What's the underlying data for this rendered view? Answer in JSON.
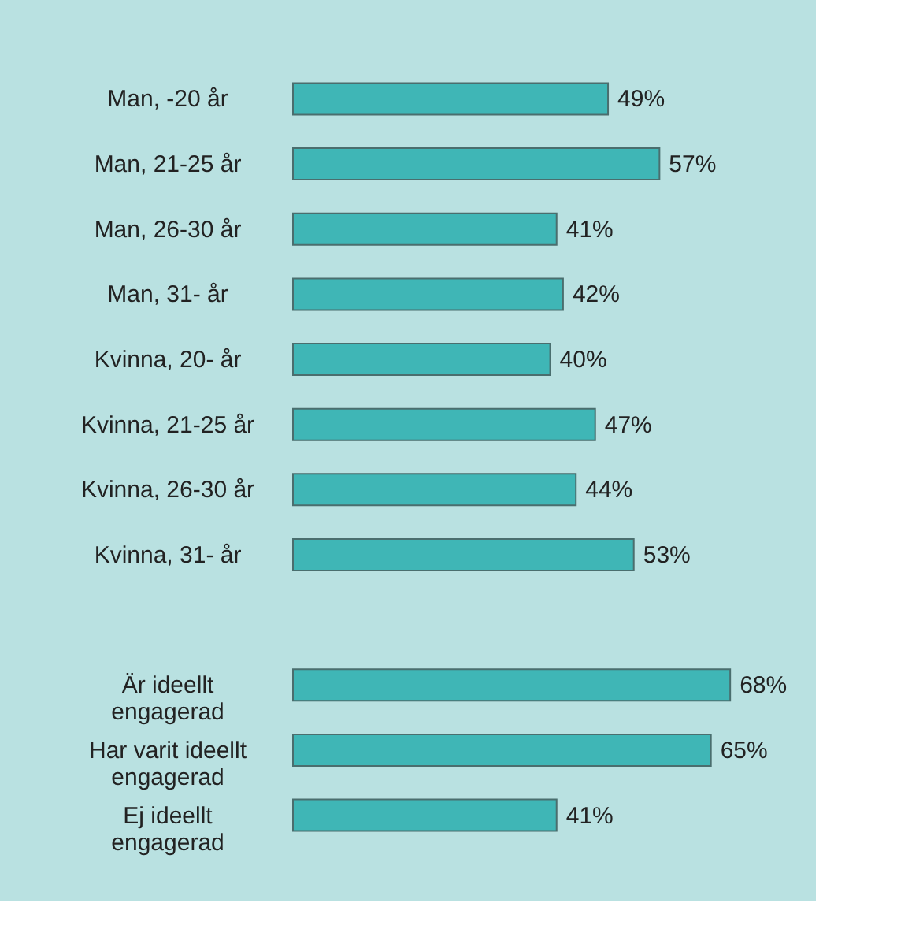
{
  "chart_data": {
    "type": "bar",
    "orientation": "horizontal",
    "categories": [
      "Man, -20 år",
      "Man, 21-25 år",
      "Man, 26-30 år",
      "Man, 31- år",
      "Kvinna, 20- år",
      "Kvinna, 21-25 år",
      "Kvinna, 26-30 år",
      "Kvinna, 31- år",
      null,
      "Är ideellt engagerad",
      "Har varit ideellt engagerad",
      "Ej ideellt engagerad"
    ],
    "values": [
      49,
      57,
      41,
      42,
      40,
      47,
      44,
      53,
      null,
      68,
      65,
      41
    ],
    "value_labels": [
      "49%",
      "57%",
      "41%",
      "42%",
      "40%",
      "47%",
      "44%",
      "53%",
      null,
      "68%",
      "65%",
      "41%"
    ],
    "color": "#3fb6b6"
  }
}
